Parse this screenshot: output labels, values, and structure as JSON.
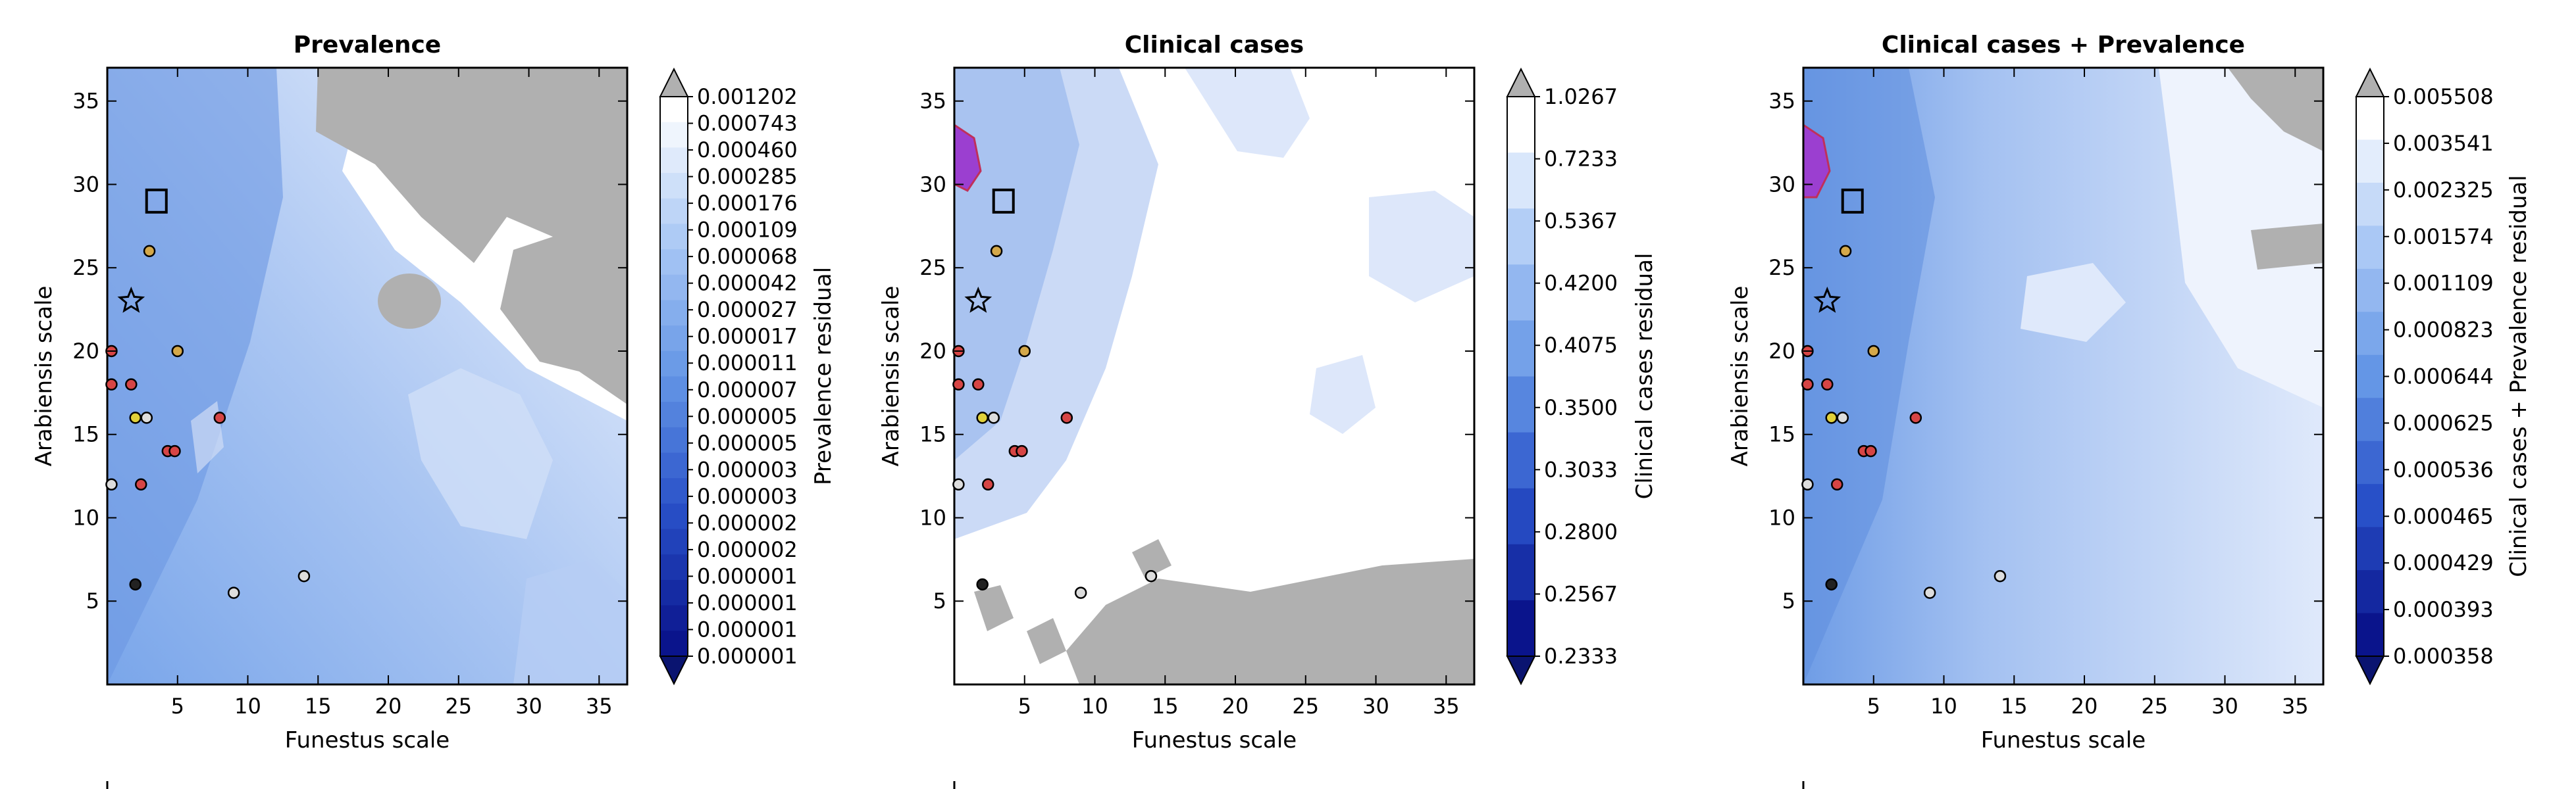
{
  "chart_data": [
    {
      "type": "heatmap",
      "title": "Prevalence",
      "xlabel": "Funestus scale",
      "ylabel": "Arabiensis scale",
      "xlim": [
        0,
        37
      ],
      "ylim": [
        0,
        37
      ],
      "xticks": [
        5,
        10,
        15,
        20,
        25,
        30,
        35
      ],
      "yticks": [
        5,
        10,
        15,
        20,
        25,
        30,
        35
      ],
      "colorbar_label": "Prevalence residual",
      "colorbar_levels": [
        "0.001202",
        "0.000743",
        "0.000460",
        "0.000285",
        "0.000176",
        "0.000109",
        "0.000068",
        "0.000042",
        "0.000027",
        "0.000017",
        "0.000011",
        "0.000007",
        "0.000005",
        "0.000005",
        "0.000003",
        "0.000003",
        "0.000002",
        "0.000002",
        "0.000001",
        "0.000001",
        "0.000001",
        "0.000001"
      ],
      "colormap": "blue-white",
      "masked_color": "#b0b0b0"
    },
    {
      "type": "heatmap",
      "title": "Clinical cases",
      "xlabel": "Funestus scale",
      "ylabel": "Arabiensis scale",
      "xlim": [
        0,
        37
      ],
      "ylim": [
        0,
        37
      ],
      "xticks": [
        5,
        10,
        15,
        20,
        25,
        30,
        35
      ],
      "yticks": [
        5,
        10,
        15,
        20,
        25,
        30,
        35
      ],
      "colorbar_label": "Clinical cases residual",
      "colorbar_levels": [
        "1.0267",
        "0.7233",
        "0.5367",
        "0.4200",
        "0.4075",
        "0.3500",
        "0.3033",
        "0.2800",
        "0.2567",
        "0.2333"
      ],
      "colormap": "blue-white",
      "masked_color": "#b0b0b0"
    },
    {
      "type": "heatmap",
      "title": "Clinical cases + Prevalence",
      "xlabel": "Funestus scale",
      "ylabel": "Arabiensis scale",
      "xlim": [
        0,
        37
      ],
      "ylim": [
        0,
        37
      ],
      "xticks": [
        5,
        10,
        15,
        20,
        25,
        30,
        35
      ],
      "yticks": [
        5,
        10,
        15,
        20,
        25,
        30,
        35
      ],
      "colorbar_label": "Clinical cases + Prevalence residual",
      "colorbar_levels": [
        "0.005508",
        "0.003541",
        "0.002325",
        "0.001574",
        "0.001109",
        "0.000823",
        "0.000644",
        "0.000625",
        "0.000536",
        "0.000465",
        "0.000429",
        "0.000393",
        "0.000358"
      ],
      "colormap": "blue-white",
      "masked_color": "#b0b0b0"
    }
  ],
  "markers": {
    "square_xy": [
      3.5,
      29
    ],
    "star_xy": [
      1.7,
      23
    ],
    "points": [
      {
        "x": 3,
        "y": 26,
        "c": "#d4a84a"
      },
      {
        "x": 0.3,
        "y": 20,
        "c": "#d64545"
      },
      {
        "x": 5,
        "y": 20,
        "c": "#d4a84a"
      },
      {
        "x": 0.3,
        "y": 18,
        "c": "#d64545"
      },
      {
        "x": 1.7,
        "y": 18,
        "c": "#d64545"
      },
      {
        "x": 2,
        "y": 16,
        "c": "#e0d03a"
      },
      {
        "x": 2.8,
        "y": 16,
        "c": "#dddddd"
      },
      {
        "x": 4.3,
        "y": 14,
        "c": "#d64545"
      },
      {
        "x": 4.8,
        "y": 14,
        "c": "#d64545"
      },
      {
        "x": 8,
        "y": 16,
        "c": "#d64545"
      },
      {
        "x": 0.3,
        "y": 12,
        "c": "#dddddd"
      },
      {
        "x": 2.4,
        "y": 12,
        "c": "#d64545"
      },
      {
        "x": 2,
        "y": 6,
        "c": "#222222"
      },
      {
        "x": 9,
        "y": 5.5,
        "c": "#dddddd"
      },
      {
        "x": 14,
        "y": 6.5,
        "c": "#dddddd"
      }
    ]
  }
}
